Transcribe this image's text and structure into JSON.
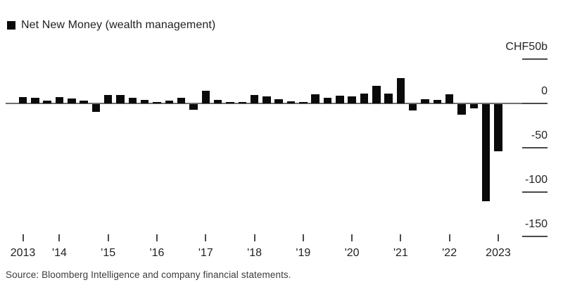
{
  "legend": {
    "swatch_color": "#0a0a0a",
    "label": "Net New Money (wealth management)"
  },
  "source_text": "Source: Bloomberg Intelligence and company financial statements.",
  "chart_data": {
    "type": "bar",
    "title": "Net New Money (wealth management)",
    "unit": "CHF billion",
    "bar_color": "#0a0a0a",
    "legend_position": "top-left",
    "grid": false,
    "x": [
      "2013 Q2",
      "2013 Q3",
      "2013 Q4",
      "2014 Q1",
      "2014 Q2",
      "2014 Q3",
      "2014 Q4",
      "2015 Q1",
      "2015 Q2",
      "2015 Q3",
      "2015 Q4",
      "2016 Q1",
      "2016 Q2",
      "2016 Q3",
      "2016 Q4",
      "2017 Q1",
      "2017 Q2",
      "2017 Q3",
      "2017 Q4",
      "2018 Q1",
      "2018 Q2",
      "2018 Q3",
      "2018 Q4",
      "2019 Q1",
      "2019 Q2",
      "2019 Q3",
      "2019 Q4",
      "2020 Q1",
      "2020 Q2",
      "2020 Q3",
      "2020 Q4",
      "2021 Q1",
      "2021 Q2",
      "2021 Q3",
      "2021 Q4",
      "2022 Q1",
      "2022 Q2",
      "2022 Q3",
      "2022 Q4",
      "2023 Q1"
    ],
    "values": [
      7.5,
      6,
      3,
      7.5,
      5.5,
      3,
      -8.5,
      9.5,
      9.5,
      6.5,
      4,
      1.5,
      3.5,
      6,
      -6,
      14.5,
      4,
      1.5,
      1.5,
      9.5,
      8,
      5,
      2.5,
      1.5,
      10.5,
      6.5,
      8.5,
      8,
      11.5,
      20,
      11,
      29,
      -7.5,
      4.5,
      4,
      10.5,
      -12,
      -4.5,
      -110,
      -53
    ],
    "y_axis": {
      "side": "right",
      "range": [
        -160,
        55
      ],
      "ticks": [
        {
          "value": 50,
          "label": "CHF50b"
        },
        {
          "value": 0,
          "label": "0"
        },
        {
          "value": -50,
          "label": "-50"
        },
        {
          "value": -100,
          "label": "-100"
        },
        {
          "value": -150,
          "label": "-150"
        }
      ]
    },
    "x_axis": {
      "ticks": [
        {
          "label": "2013",
          "bar_index": 0
        },
        {
          "label": "'14",
          "bar_index": 3
        },
        {
          "label": "'15",
          "bar_index": 7
        },
        {
          "label": "'16",
          "bar_index": 11
        },
        {
          "label": "'17",
          "bar_index": 15
        },
        {
          "label": "'18",
          "bar_index": 19
        },
        {
          "label": "'19",
          "bar_index": 23
        },
        {
          "label": "'20",
          "bar_index": 27
        },
        {
          "label": "'21",
          "bar_index": 31
        },
        {
          "label": "'22",
          "bar_index": 35
        },
        {
          "label": "2023",
          "bar_index": 39
        }
      ]
    }
  },
  "colors": {
    "background": "#ffffff",
    "axis_line": "#6e6e6e",
    "tick": "#4a4a4a",
    "text": "#1f1f1f",
    "source_text": "#3c3c3c"
  }
}
